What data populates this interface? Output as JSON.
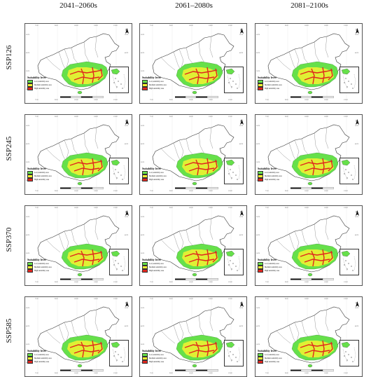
{
  "columns": [
    "2041–2060s",
    "2061–2080s",
    "2081–2100s"
  ],
  "rows": [
    "SSP126",
    "SSP245",
    "SSP370",
    "SSP585"
  ],
  "legend": {
    "title": "Suitability level",
    "items": [
      {
        "label": "Low suitability area",
        "color": "#66e04a"
      },
      {
        "label": "Medium suitability area",
        "color": "#f6f230"
      },
      {
        "label": "High suitability area",
        "color": "#e0261e"
      }
    ]
  },
  "north_label": "N",
  "lon_ticks": [
    "75°E",
    "90°E",
    "105°E",
    "120°E",
    "135°E"
  ],
  "lat_ticks": [
    "50°N",
    "40°N",
    "30°N",
    "20°N"
  ],
  "colors": {
    "low": "#66e04a",
    "medium": "#f6f230",
    "high": "#e0261e",
    "outline": "#333333",
    "boundary": "#555555"
  }
}
